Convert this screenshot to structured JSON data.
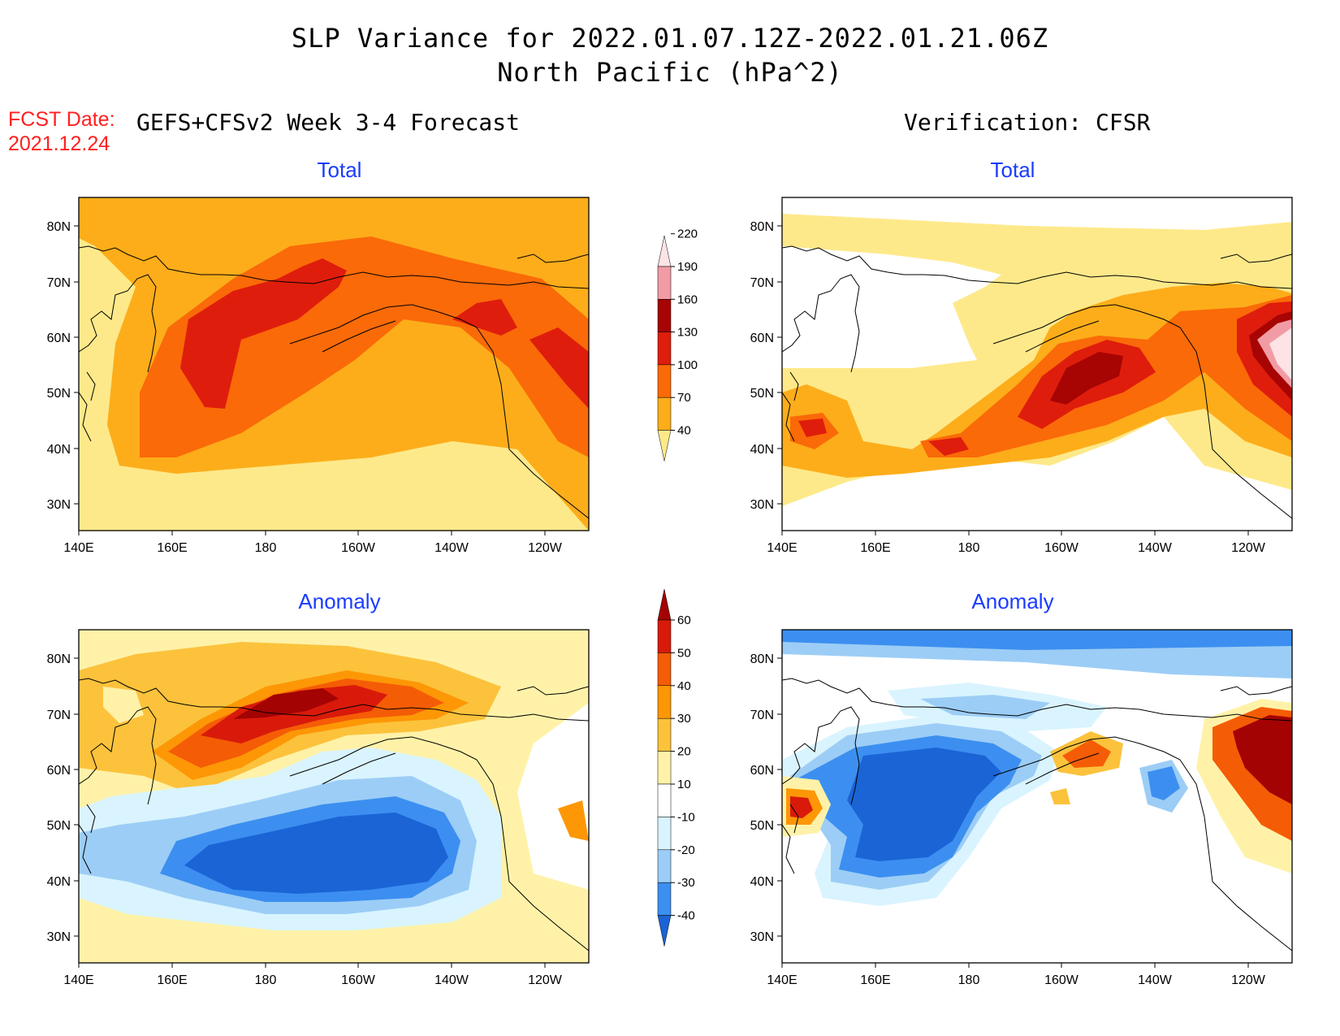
{
  "title_line1": "SLP Variance for 2022.01.07.12Z-2022.01.21.06Z",
  "title_line2": "North Pacific (hPa^2)",
  "fcst_label": "FCST Date:",
  "fcst_date": "2021.12.24",
  "left_column": "GEFS+CFSv2 Week 3-4 Forecast",
  "right_column": "Verification: CFSR",
  "axes": {
    "x_ticks": [
      "140E",
      "160E",
      "180",
      "160W",
      "140W",
      "120W"
    ],
    "y_ticks": [
      "80N",
      "70N",
      "60N",
      "50N",
      "40N",
      "30N"
    ]
  },
  "panels": [
    {
      "id": "forecast-total",
      "title": "Total",
      "scale": "total"
    },
    {
      "id": "verification-total",
      "title": "Total",
      "scale": "total"
    },
    {
      "id": "forecast-anomaly",
      "title": "Anomaly",
      "scale": "anomaly"
    },
    {
      "id": "verification-anomaly",
      "title": "Anomaly",
      "scale": "anomaly"
    }
  ],
  "colorbars": {
    "total": {
      "labels": [
        "40",
        "70",
        "100",
        "130",
        "160",
        "190",
        "220"
      ],
      "colors": [
        "#fee98a",
        "#fdad1a",
        "#fa6a08",
        "#df1d0c",
        "#a70404",
        "#f19ca5",
        "#fde3e5"
      ]
    },
    "anomaly": {
      "labels": [
        "-40",
        "-30",
        "-20",
        "-10",
        "10",
        "20",
        "30",
        "40",
        "50",
        "60"
      ],
      "colors": [
        "#1b64d6",
        "#3c8ff0",
        "#9ccdf6",
        "#d9f4fe",
        "#ffffff",
        "#fff2a8",
        "#fcc23c",
        "#fd9706",
        "#f55c06",
        "#d91a0b",
        "#a30303"
      ]
    }
  }
}
